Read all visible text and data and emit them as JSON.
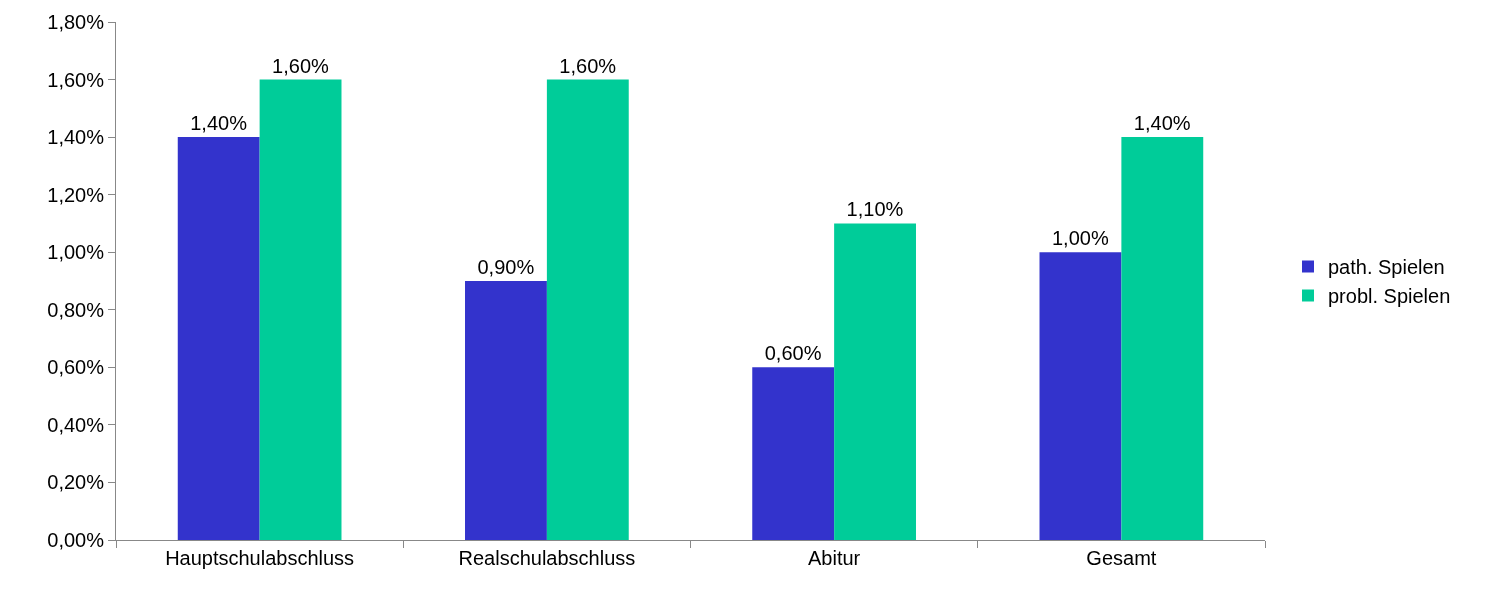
{
  "chart_data": {
    "type": "bar",
    "categories": [
      "Hauptschulabschluss",
      "Realschulabschluss",
      "Abitur",
      "Gesamt"
    ],
    "series": [
      {
        "name": "path. Spielen",
        "color": "#3333cc",
        "values": [
          1.4,
          0.9,
          0.6,
          1.0
        ],
        "value_labels": [
          "1,40%",
          "0,90%",
          "0,60%",
          "1,00%"
        ]
      },
      {
        "name": "probl. Spielen",
        "color": "#00cc99",
        "values": [
          1.6,
          1.6,
          1.1,
          1.4
        ],
        "value_labels": [
          "1,60%",
          "1,60%",
          "1,10%",
          "1,40%"
        ]
      }
    ],
    "ylim": [
      0,
      1.8
    ],
    "yticks": [
      {
        "value": 0,
        "label": "0,00%"
      },
      {
        "value": 0.2,
        "label": "0,20%"
      },
      {
        "value": 0.4,
        "label": "0,40%"
      },
      {
        "value": 0.6,
        "label": "0,60%"
      },
      {
        "value": 0.8,
        "label": "0,80%"
      },
      {
        "value": 1.0,
        "label": "1,00%"
      },
      {
        "value": 1.2,
        "label": "1,20%"
      },
      {
        "value": 1.4,
        "label": "1,40%"
      },
      {
        "value": 1.6,
        "label": "1,60%"
      },
      {
        "value": 1.8,
        "label": "1,80%"
      }
    ],
    "grid": false,
    "legend": "right"
  }
}
